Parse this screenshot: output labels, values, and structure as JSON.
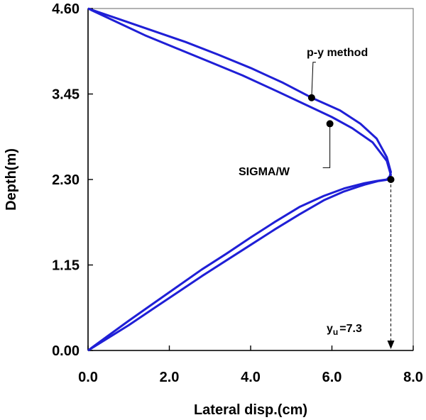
{
  "chart_data": {
    "type": "line",
    "xlabel": "Lateral disp.(cm)",
    "ylabel": "Depth(m)",
    "xlim": [
      0,
      8
    ],
    "ylim": [
      0,
      4.6
    ],
    "x_ticks": [
      "0.0",
      "2.0",
      "4.0",
      "6.0",
      "8.0"
    ],
    "y_ticks": [
      "0.00",
      "1.15",
      "2.30",
      "3.45",
      "4.60"
    ],
    "grid": false,
    "series": [
      {
        "name": "p-y method",
        "color": "#1f1fd6",
        "x": [
          0,
          0.5,
          1.0,
          1.6,
          2.2,
          2.8,
          3.4,
          4.0,
          4.6,
          5.2,
          5.8,
          6.3,
          6.8,
          7.15,
          7.4,
          7.45,
          7.35,
          7.1,
          6.7,
          6.2,
          5.5,
          4.8,
          4.0,
          3.2,
          2.4,
          1.6,
          0.8,
          0
        ],
        "y": [
          0,
          0.17,
          0.34,
          0.56,
          0.78,
          1.0,
          1.21,
          1.42,
          1.63,
          1.83,
          2.02,
          2.14,
          2.23,
          2.28,
          2.3,
          2.4,
          2.6,
          2.85,
          3.05,
          3.23,
          3.4,
          3.6,
          3.8,
          3.98,
          4.15,
          4.3,
          4.45,
          4.6
        ]
      },
      {
        "name": "SIGMA/W",
        "color": "#1f1fd6",
        "x": [
          0,
          0.5,
          1.0,
          1.6,
          2.2,
          2.8,
          3.4,
          4.0,
          4.6,
          5.2,
          5.8,
          6.3,
          6.8,
          7.1,
          7.35,
          7.45,
          7.35,
          7.0,
          6.5,
          6.0,
          5.3,
          4.6,
          3.8,
          3.0,
          2.2,
          1.4,
          0.7,
          0
        ],
        "y": [
          0,
          0.2,
          0.4,
          0.63,
          0.86,
          1.09,
          1.3,
          1.52,
          1.73,
          1.93,
          2.08,
          2.18,
          2.25,
          2.28,
          2.3,
          2.36,
          2.55,
          2.8,
          2.99,
          3.14,
          3.32,
          3.5,
          3.7,
          3.88,
          4.06,
          4.24,
          4.42,
          4.6
        ]
      }
    ],
    "markers": [
      {
        "x": 5.5,
        "y": 3.4
      },
      {
        "x": 5.95,
        "y": 3.05
      },
      {
        "x": 7.45,
        "y": 2.3
      }
    ],
    "annotations": {
      "py_label": "p-y method",
      "sigma_label": "SIGMA/W",
      "yu_main": "y",
      "yu_sub": "u",
      "yu_value": "=7.3",
      "yu_x": 7.45
    }
  }
}
